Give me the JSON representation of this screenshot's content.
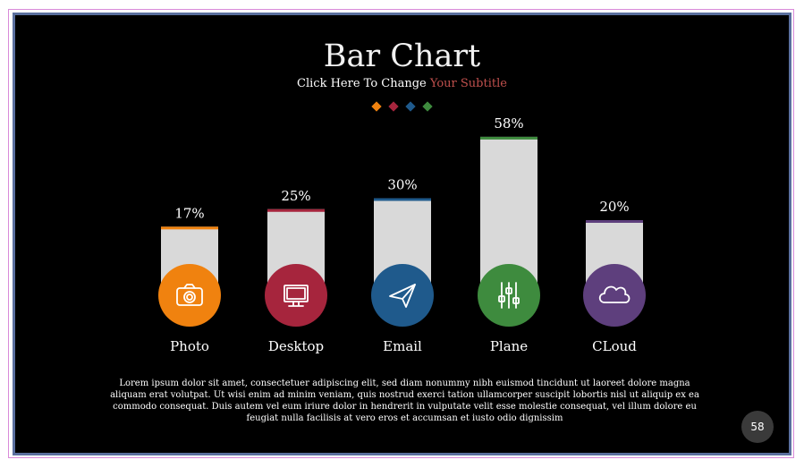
{
  "slide": {
    "title": "Bar Chart",
    "subtitle_prefix": "Click Here To Change ",
    "subtitle_highlight": "Your Subtitle",
    "diamond_colors": [
      "#f0820f",
      "#a6253d",
      "#1f5a8c",
      "#3e8b3e"
    ],
    "body_text": "Lorem ipsum dolor sit amet, consectetuer adipiscing elit, sed diam nonummy nibh euismod tincidunt ut laoreet dolore magna aliquam erat volutpat. Ut wisi enim ad minim veniam, quis nostrud exerci tation ullamcorper suscipit lobortis nisl ut aliquip ex ea commodo consequat. Duis autem vel eum iriure dolor in hendrerit in vulputate velit esse molestie consequat, vel illum dolore eu feugiat nulla facilisis at vero eros et accumsan et iusto odio dignissim",
    "page_number": "58"
  },
  "chart_data": {
    "type": "bar",
    "categories": [
      "Photo",
      "Desktop",
      "Email",
      "Plane",
      "CLoud"
    ],
    "values": [
      17,
      25,
      30,
      58,
      20
    ],
    "value_labels": [
      "17%",
      "25%",
      "30%",
      "58%",
      "20%"
    ],
    "colors": [
      "#f0820f",
      "#a6253d",
      "#1f5a8c",
      "#3e8b3e",
      "#5e3f7d"
    ],
    "icons": [
      "camera-icon",
      "monitor-icon",
      "paper-plane-icon",
      "sliders-icon",
      "cloud-icon"
    ],
    "bar_color": "#d9d9d9",
    "grid": false
  }
}
